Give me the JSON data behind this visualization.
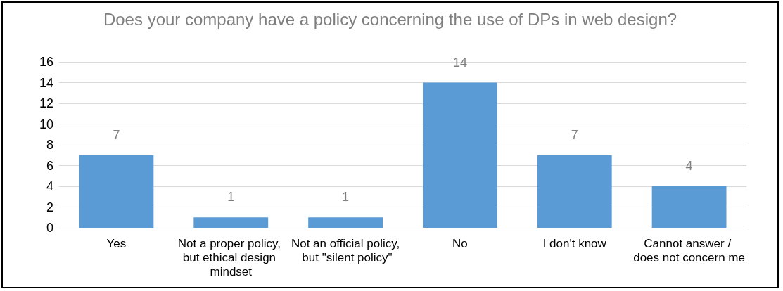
{
  "chart_data": {
    "type": "bar",
    "title": "Does your company have a policy concerning the use of DPs in web design?",
    "categories": [
      "Yes",
      "Not a proper policy, but ethical design mindset",
      "Not an official policy, but \"silent policy\"",
      "No",
      "I don't know",
      "Cannot answer / does not concern me"
    ],
    "values": [
      7,
      1,
      1,
      14,
      7,
      4
    ],
    "color": "#5b9bd5",
    "ylim": [
      0,
      16
    ],
    "yticks": [
      0,
      2,
      4,
      6,
      8,
      10,
      12,
      14,
      16
    ],
    "grid": "y",
    "data_labels": true
  }
}
